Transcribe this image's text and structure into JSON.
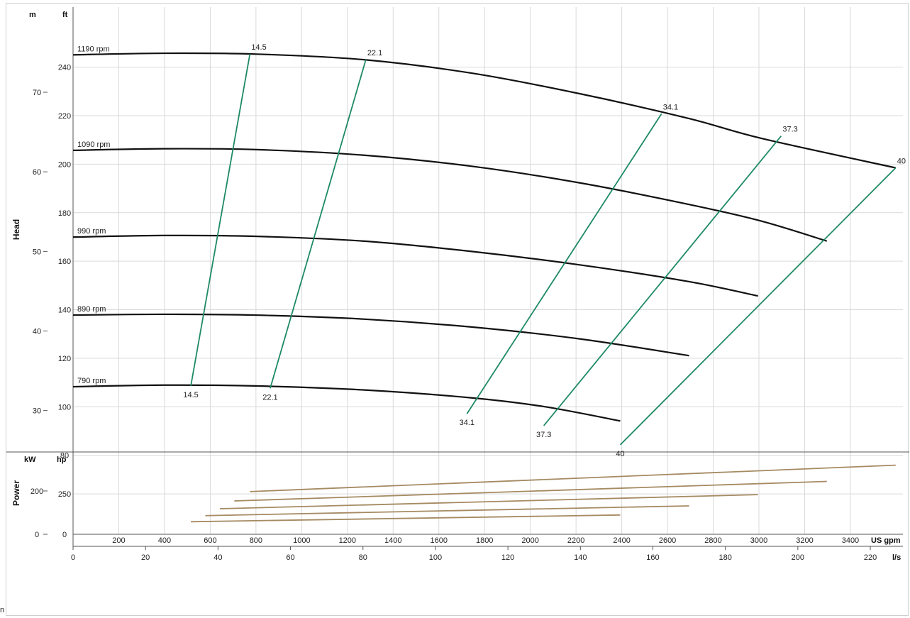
{
  "stray_char": "n",
  "chart_data": {
    "type": "line",
    "title": "",
    "units": {
      "head_m": "m",
      "head_ft": "ft",
      "power_kw": "kW",
      "power_hp": "hp",
      "flow_usgpm": "US gpm",
      "flow_ls": "l/s"
    },
    "head_axis_label": "Head",
    "power_axis_label": "Power",
    "head_m_ticks": [
      30,
      40,
      50,
      60,
      70
    ],
    "head_ft_ticks": [
      80,
      100,
      120,
      140,
      160,
      180,
      200,
      220,
      240
    ],
    "power_kw_ticks": [
      0,
      200
    ],
    "power_hp_ticks": [
      0,
      250
    ],
    "flow_usgpm_ticks": [
      200,
      400,
      600,
      800,
      1000,
      1200,
      1400,
      1600,
      1800,
      2000,
      2200,
      2400,
      2600,
      2800,
      3000,
      3200,
      3400
    ],
    "flow_ls_ticks": [
      0,
      20,
      40,
      60,
      80,
      100,
      120,
      140,
      160,
      180,
      200,
      220
    ],
    "head_ylim_m": [
      24.8,
      80.7
    ],
    "power_ylim_kw": [
      0,
      380
    ],
    "xlim_ls": [
      0,
      229
    ],
    "grid": true,
    "speed_curves": [
      {
        "name": "1190 rpm",
        "points": [
          [
            0,
            74.7
          ],
          [
            25,
            74.9
          ],
          [
            50,
            74.8
          ],
          [
            80,
            74.1
          ],
          [
            110,
            72.4
          ],
          [
            140,
            69.8
          ],
          [
            170,
            66.7
          ],
          [
            190,
            64.2
          ],
          [
            227,
            60.5
          ]
        ]
      },
      {
        "name": "1090 rpm",
        "points": [
          [
            0,
            62.7
          ],
          [
            25,
            62.9
          ],
          [
            50,
            62.8
          ],
          [
            80,
            62.1
          ],
          [
            110,
            60.7
          ],
          [
            140,
            58.6
          ],
          [
            170,
            55.9
          ],
          [
            190,
            53.8
          ],
          [
            208,
            51.3
          ]
        ]
      },
      {
        "name": "990 rpm",
        "points": [
          [
            0,
            51.8
          ],
          [
            25,
            52.0
          ],
          [
            50,
            51.9
          ],
          [
            80,
            51.3
          ],
          [
            110,
            50.0
          ],
          [
            140,
            48.3
          ],
          [
            170,
            46.2
          ],
          [
            189,
            44.4
          ]
        ]
      },
      {
        "name": "890 rpm",
        "points": [
          [
            0,
            42.0
          ],
          [
            25,
            42.1
          ],
          [
            50,
            42.0
          ],
          [
            80,
            41.5
          ],
          [
            110,
            40.5
          ],
          [
            140,
            39.0
          ],
          [
            170,
            36.9
          ]
        ]
      },
      {
        "name": "790 rpm",
        "points": [
          [
            0,
            33.0
          ],
          [
            25,
            33.2
          ],
          [
            50,
            33.1
          ],
          [
            80,
            32.6
          ],
          [
            110,
            31.6
          ],
          [
            130,
            30.5
          ],
          [
            151,
            28.7
          ]
        ]
      }
    ],
    "efficiency_lines": [
      {
        "label": "14.5",
        "points": [
          [
            32.5,
            33.1
          ],
          [
            48.8,
            74.8
          ]
        ]
      },
      {
        "label": "22.1",
        "points": [
          [
            54.4,
            32.8
          ],
          [
            80.8,
            74.1
          ]
        ]
      },
      {
        "label": "34.1",
        "points": [
          [
            108.7,
            29.6
          ],
          [
            162.4,
            67.3
          ]
        ]
      },
      {
        "label": "37.3",
        "points": [
          [
            129.9,
            28.1
          ],
          [
            195.4,
            64.5
          ]
        ]
      },
      {
        "label": "40",
        "points": [
          [
            151.0,
            25.7
          ],
          [
            227.0,
            60.5
          ]
        ]
      }
    ],
    "power_curves": [
      {
        "name": "1190 rpm",
        "points": [
          [
            48.8,
            197
          ],
          [
            227.0,
            319
          ]
        ]
      },
      {
        "name": "1090 rpm",
        "points": [
          [
            44.5,
            154
          ],
          [
            208.0,
            244
          ]
        ]
      },
      {
        "name": "990 rpm",
        "points": [
          [
            40.5,
            118
          ],
          [
            189.0,
            183
          ]
        ]
      },
      {
        "name": "890 rpm",
        "points": [
          [
            36.5,
            86
          ],
          [
            170.0,
            131
          ]
        ]
      },
      {
        "name": "790 rpm",
        "points": [
          [
            32.5,
            58
          ],
          [
            151.0,
            89
          ]
        ]
      }
    ]
  }
}
